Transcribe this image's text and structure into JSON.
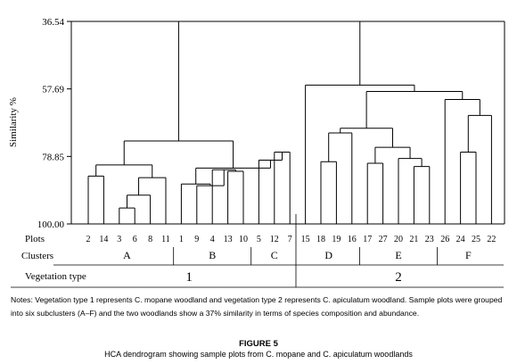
{
  "chart_data": {
    "type": "dendrogram",
    "ylabel": "Similarity %",
    "y_ticks": [
      "36.54",
      "57.69",
      "78.85",
      "100.00"
    ],
    "ylim": [
      36.54,
      100.0
    ],
    "axis_reversed": true,
    "plots_label": "Plots",
    "plots": [
      "2",
      "14",
      "3",
      "6",
      "8",
      "11",
      "1",
      "9",
      "4",
      "13",
      "10",
      "5",
      "12",
      "7",
      "15",
      "18",
      "19",
      "16",
      "17",
      "27",
      "20",
      "21",
      "23",
      "26",
      "24",
      "25",
      "22"
    ],
    "clusters_label": "Clusters",
    "clusters": [
      {
        "name": "A",
        "plots": [
          "2",
          "14",
          "3",
          "6",
          "8",
          "11"
        ]
      },
      {
        "name": "B",
        "plots": [
          "1",
          "9",
          "4",
          "13",
          "10"
        ]
      },
      {
        "name": "C",
        "plots": [
          "5",
          "12",
          "7"
        ]
      },
      {
        "name": "D",
        "plots": [
          "15",
          "18",
          "19",
          "16"
        ]
      },
      {
        "name": "E",
        "plots": [
          "17",
          "27",
          "20",
          "21",
          "23"
        ]
      },
      {
        "name": "F",
        "plots": [
          "26",
          "24",
          "25",
          "22"
        ]
      }
    ],
    "vegetation_label": "Vegetation type",
    "vegetation_types": [
      {
        "name": "1",
        "clusters": [
          "A",
          "B",
          "C"
        ]
      },
      {
        "name": "2",
        "clusters": [
          "D",
          "E",
          "F"
        ]
      }
    ],
    "merges": [
      {
        "a": "3",
        "b": "6",
        "sim": 95.0
      },
      {
        "a": "8",
        "b": "M1",
        "sim": 91.0
      },
      {
        "a": "11",
        "b": "M2",
        "sim": 85.5
      },
      {
        "a": "2",
        "b": "14",
        "sim": 85.0
      },
      {
        "a": "M4",
        "b": "M3",
        "sim": 81.5
      },
      {
        "a": "13",
        "b": "10",
        "sim": 83.5
      },
      {
        "a": "4",
        "b": "M6",
        "sim": 83.0
      },
      {
        "a": "9",
        "b": "M7",
        "sim": 88.0
      },
      {
        "a": "1",
        "b": "M8",
        "sim": 87.5
      },
      {
        "a": "12",
        "b": "7",
        "sim": 77.5
      },
      {
        "a": "5",
        "b": "M10",
        "sim": 80.0
      },
      {
        "a": "M9",
        "b": "M11",
        "sim": 82.5
      },
      {
        "a": "M5",
        "b": "M12",
        "sim": 74.0
      },
      {
        "a": "18",
        "b": "19",
        "sim": 80.5
      },
      {
        "a": "M14",
        "b": "16",
        "sim": 71.5
      },
      {
        "a": "17",
        "b": "27",
        "sim": 81.0
      },
      {
        "a": "21",
        "b": "23",
        "sim": 82.0
      },
      {
        "a": "20",
        "b": "M17",
        "sim": 79.5
      },
      {
        "a": "M16",
        "b": "M18",
        "sim": 76.0
      },
      {
        "a": "M15",
        "b": "M19",
        "sim": 70.0
      },
      {
        "a": "24",
        "b": "25",
        "sim": 77.5
      },
      {
        "a": "M21",
        "b": "22",
        "sim": 66.0
      },
      {
        "a": "26",
        "b": "M22",
        "sim": 61.0
      },
      {
        "a": "M20",
        "b": "M23",
        "sim": 58.5
      },
      {
        "a": "15",
        "b": "M24",
        "sim": 56.5
      },
      {
        "a": "M13",
        "b": "M25",
        "sim": 36.54
      }
    ]
  },
  "notes": {
    "text": "Notes: Vegetation type 1 represents C. mopane woodland and vegetation type 2 represents C. apiculatum woodland. Sample plots were grouped into six subclusters (A–F) and the two  woodlands  show  a 37% similarity in terms of species composition and abundance."
  },
  "figure": {
    "label": "FIGURE 5",
    "caption": "HCA dendrogram showing sample plots from C. mopane and C. apiculatum woodlands"
  }
}
